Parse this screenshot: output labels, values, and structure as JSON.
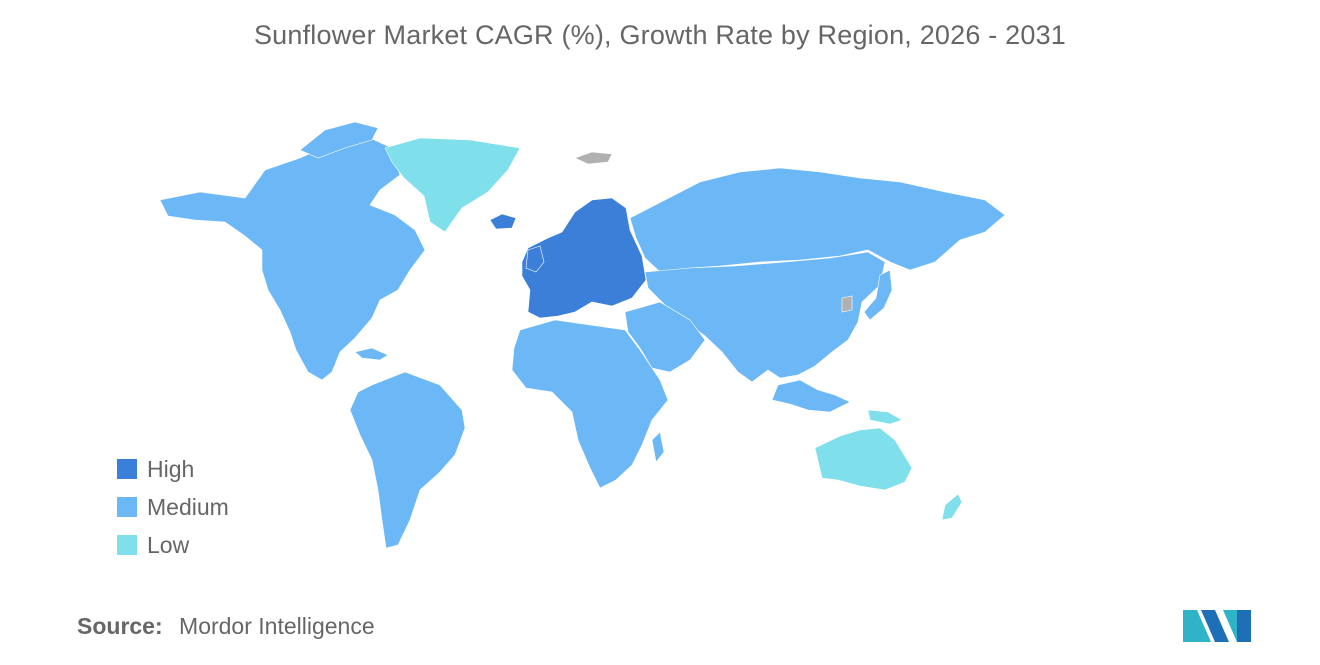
{
  "title": "Sunflower Market CAGR (%), Growth Rate by Region, 2026 - 2031",
  "legend": [
    {
      "label": "High",
      "color": "#3b7fd9"
    },
    {
      "label": "Medium",
      "color": "#6cb8f6"
    },
    {
      "label": "Low",
      "color": "#7fdfeb"
    }
  ],
  "no_data_color": "#b0b0b0",
  "regions": {
    "north_america": "Medium",
    "greenland": "Low",
    "south_america": "Medium",
    "europe": "High",
    "russia": "Medium",
    "africa": "Medium",
    "middle_east": "Medium",
    "asia": "Medium",
    "southeast_asia": "Medium",
    "japan": "Medium",
    "australia": "Low",
    "new_zealand": "Low",
    "papua_new_guinea": "Low"
  },
  "source": {
    "label": "Source:",
    "value": "Mordor Intelligence"
  },
  "logo_icon": "mordor-intelligence-logo"
}
